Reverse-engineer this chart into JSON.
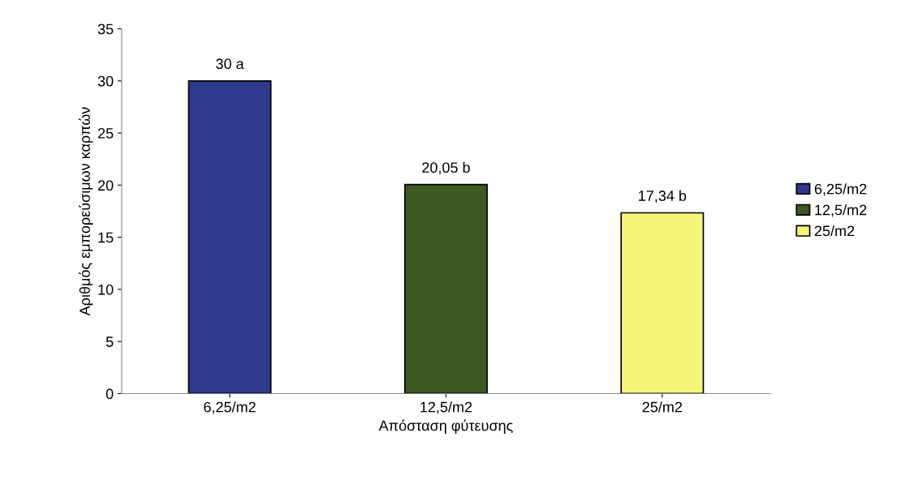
{
  "chart_data": {
    "type": "bar",
    "xlabel": "Απόσταση φύτευσης",
    "ylabel": "Αριθμός εμπορεύσιμων καρπών",
    "categories": [
      "6,25/m2",
      "12,5/m2",
      "25/m2"
    ],
    "series": [
      {
        "name": "6,25/m2",
        "color": "#2e3a8c",
        "values": [
          30,
          null,
          null
        ],
        "value_labels": [
          "30 a",
          null,
          null
        ]
      },
      {
        "name": "12,5/m2",
        "color": "#3d5a22",
        "values": [
          null,
          20.05,
          null
        ],
        "value_labels": [
          null,
          "20,05 b",
          null
        ]
      },
      {
        "name": "25/m2",
        "color": "#f6f57a",
        "values": [
          null,
          null,
          17.34
        ],
        "value_labels": [
          null,
          null,
          "17,34 b"
        ]
      }
    ],
    "ylim": [
      0,
      35
    ],
    "yticks": [
      0,
      5,
      10,
      15,
      20,
      25,
      30,
      35
    ],
    "grid": false,
    "legend": "right"
  }
}
